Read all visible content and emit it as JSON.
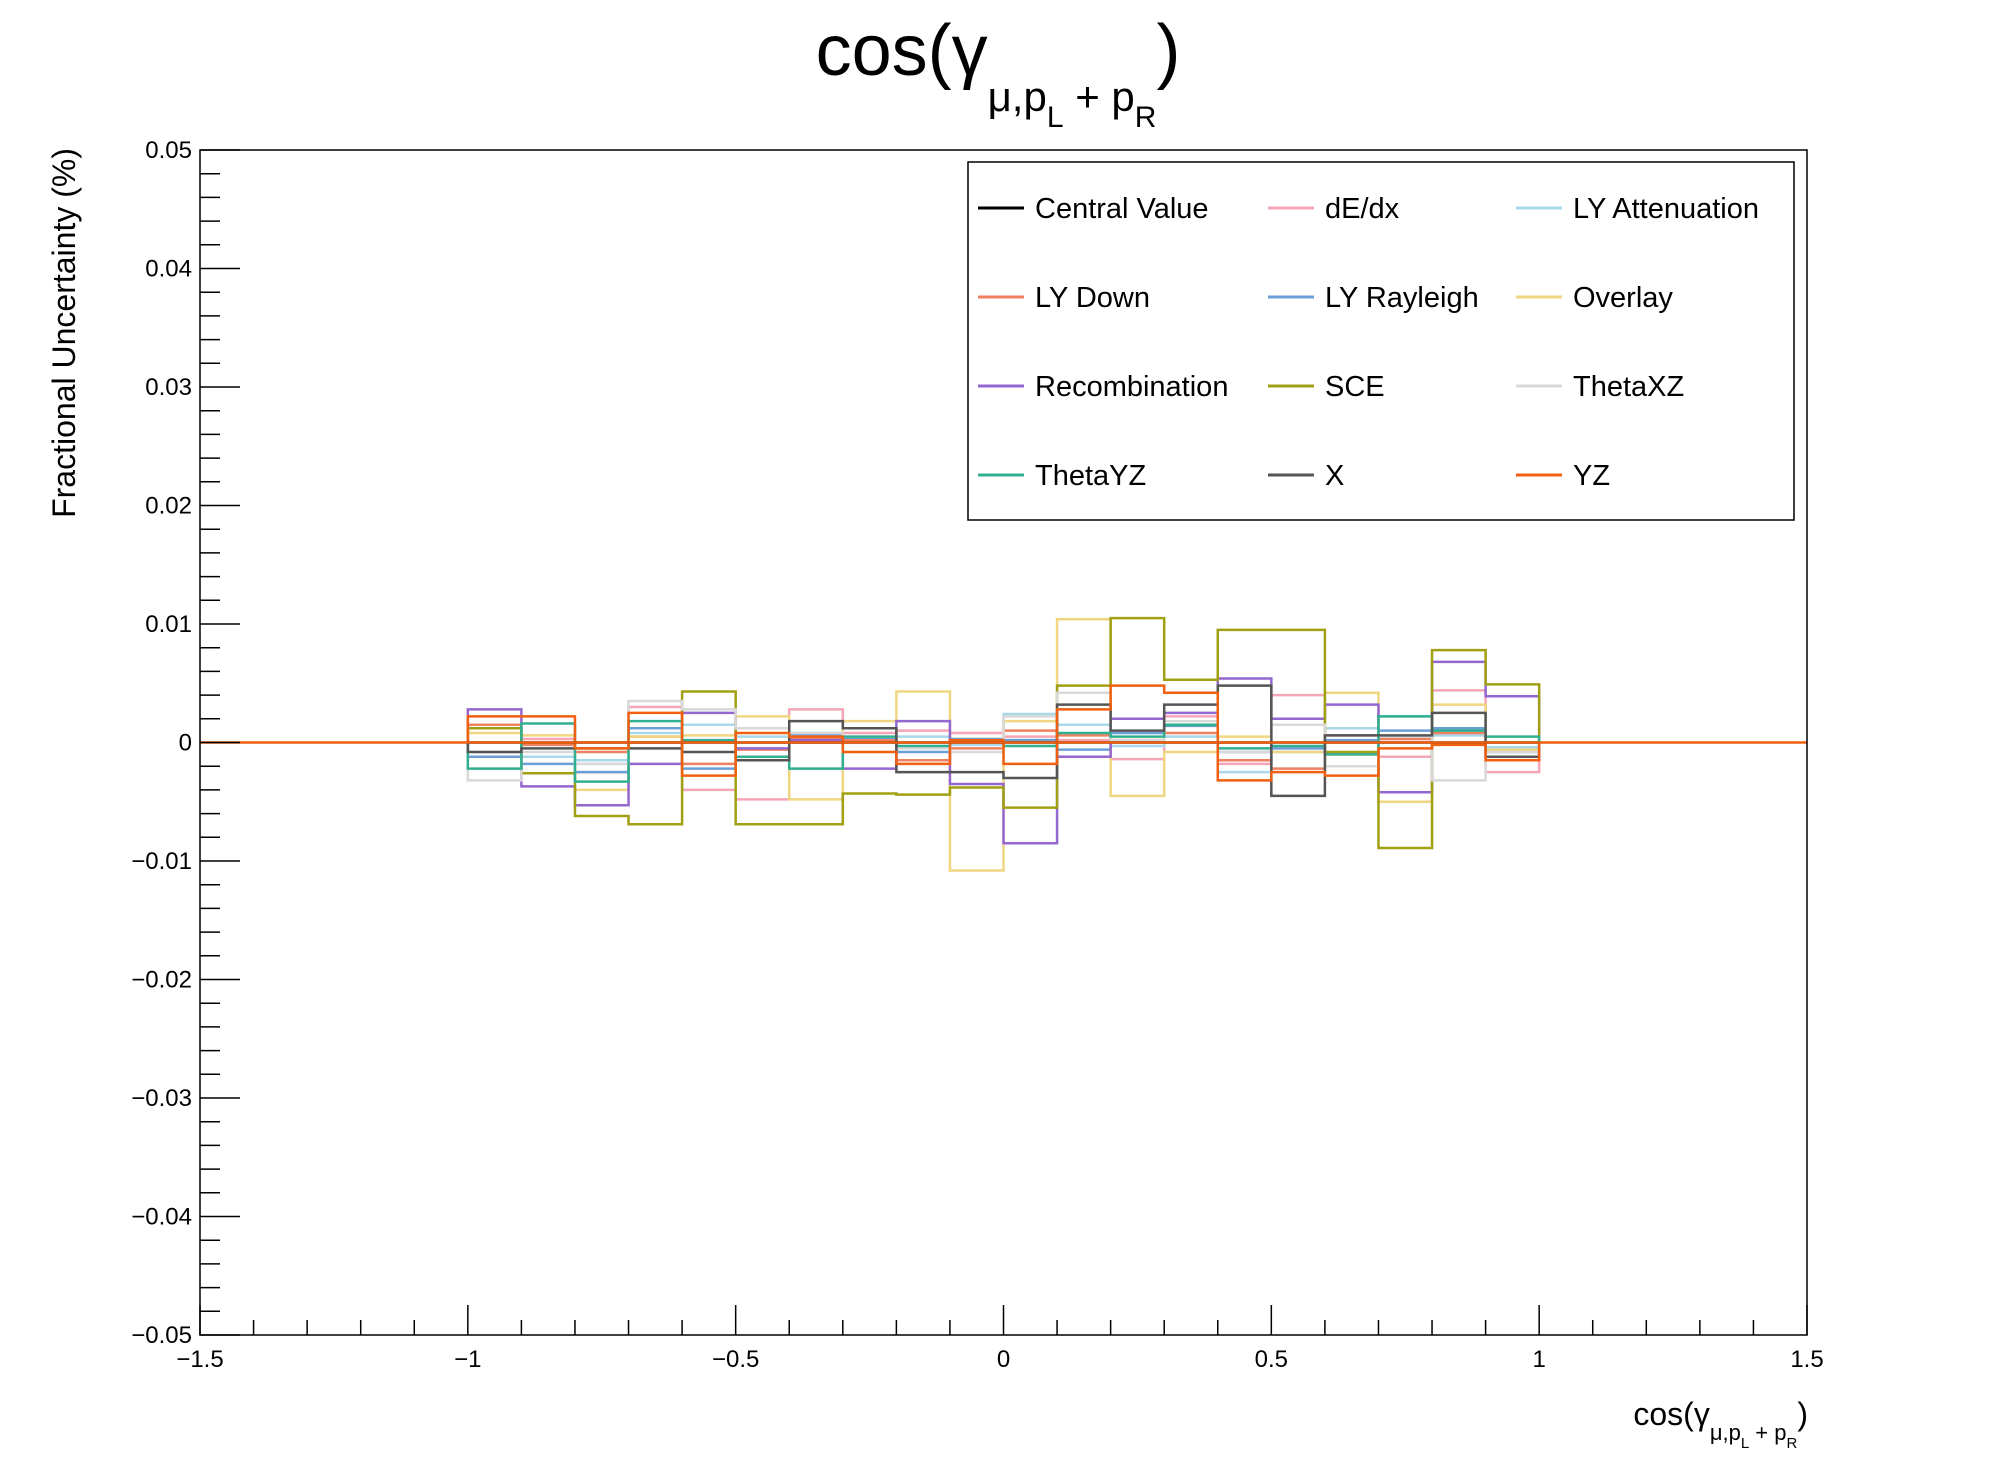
{
  "chart_data": {
    "type": "line",
    "title": {
      "main": "cos(γ",
      "sub1": "μ,p",
      "sub2": "L",
      "mid": " + p",
      "sub3": "R",
      "close": ")"
    },
    "xlabel": {
      "main": "cos(γ",
      "sub1": "μ,p",
      "sub2": "L",
      "mid": " + p",
      "sub3": "R",
      "close": ")"
    },
    "ylabel": "Fractional Uncertainty (%)",
    "xlim": [
      -1.5,
      1.5
    ],
    "ylim": [
      -0.05,
      0.05
    ],
    "x_ticks": [
      -1.5,
      -1,
      -0.5,
      0,
      0.5,
      1,
      1.5
    ],
    "x_tick_labels": [
      "−1.5",
      "−1",
      "−0.5",
      "0",
      "0.5",
      "1",
      "1.5"
    ],
    "y_ticks": [
      0.05,
      0.04,
      0.03,
      0.02,
      0.01,
      0,
      -0.01,
      -0.02,
      -0.03,
      -0.04,
      -0.05
    ],
    "y_tick_labels": [
      "0.05",
      "0.04",
      "0.03",
      "0.02",
      "0.01",
      "0",
      "−0.01",
      "−0.02",
      "−0.03",
      "−0.04",
      "−0.05"
    ],
    "bin_edges": [
      -1,
      -0.9,
      -0.8,
      -0.7,
      -0.6,
      -0.5,
      -0.4,
      -0.3,
      -0.2,
      -0.1,
      0,
      0.1,
      0.2,
      0.3,
      0.4,
      0.5,
      0.6,
      0.7,
      0.8,
      0.9,
      1
    ],
    "legend_position": "top-right",
    "grid": false,
    "series": [
      {
        "name": "Central Value",
        "color": "#000000",
        "values": [
          0,
          0,
          0,
          0,
          0,
          0,
          0,
          0,
          0,
          0,
          0,
          0,
          0,
          0,
          0,
          0,
          0,
          0,
          0,
          0
        ]
      },
      {
        "name": "dE/dx",
        "color": "#f4a6b7",
        "values": [
          0.0012,
          0.0003,
          -0.0025,
          0.003,
          -0.004,
          -0.0048,
          0.0028,
          0.0008,
          0.001,
          0.0008,
          0.0005,
          0.0002,
          -0.0014,
          0.0022,
          -0.0018,
          0.004,
          0.0006,
          -0.0012,
          0.0044,
          -0.0025
        ]
      },
      {
        "name": "LY Attenuation",
        "color": "#a8d8ea",
        "values": [
          -0.0008,
          -0.0012,
          -0.0015,
          0.0008,
          0.0015,
          0.0005,
          0.0008,
          0.0012,
          0.0005,
          -0.0002,
          0.0024,
          0.0015,
          -0.0003,
          0.0005,
          -0.0025,
          -0.0008,
          0.0012,
          0.0022,
          0.0006,
          -0.0004
        ]
      },
      {
        "name": "LY Down",
        "color": "#ef8060",
        "values": [
          0.0015,
          -0.0002,
          -0.0008,
          0.0005,
          -0.0018,
          -0.0006,
          0.0003,
          0.0002,
          -0.0015,
          -0.0005,
          0.001,
          0.0006,
          0.0002,
          0.0008,
          -0.0015,
          -0.0022,
          -0.001,
          0.0003,
          0.0008,
          -0.0015
        ]
      },
      {
        "name": "LY Rayleigh",
        "color": "#6a9fd8",
        "values": [
          -0.0012,
          -0.0018,
          -0.0025,
          0.0012,
          -0.0022,
          -0.0012,
          0.0006,
          0.0004,
          -0.0008,
          0.0003,
          0.0002,
          -0.0006,
          0.0008,
          0.0014,
          -0.0008,
          -0.0005,
          0.0002,
          0.001,
          0.0012,
          -0.0008
        ]
      },
      {
        "name": "Overlay",
        "color": "#f0d680",
        "values": [
          0.0008,
          0.0006,
          -0.004,
          0.0005,
          0.0006,
          0.0022,
          -0.0048,
          0.0018,
          0.0043,
          -0.0108,
          0.0018,
          0.0104,
          -0.0045,
          -0.0008,
          0.0005,
          -0.0008,
          0.0042,
          -0.005,
          0.0032,
          -0.0006
        ]
      },
      {
        "name": "Recombination",
        "color": "#9467d0",
        "values": [
          0.0028,
          -0.0037,
          -0.0053,
          -0.0018,
          0.0025,
          -0.0005,
          0.0002,
          -0.0022,
          0.0018,
          -0.0035,
          -0.0085,
          -0.0012,
          0.002,
          0.0025,
          0.0054,
          0.002,
          0.0032,
          -0.0042,
          0.0068,
          0.0039
        ]
      },
      {
        "name": "SCE",
        "color": "#a0a012",
        "values": [
          0.0012,
          -0.0026,
          -0.0062,
          -0.0069,
          0.0043,
          -0.0069,
          -0.0069,
          -0.0043,
          -0.0044,
          -0.0038,
          -0.0055,
          0.0048,
          0.0105,
          0.0053,
          0.0095,
          0.0095,
          -0.0008,
          -0.0089,
          0.0078,
          0.0049
        ]
      },
      {
        "name": "ThetaXZ",
        "color": "#d8d8d8",
        "values": [
          -0.0032,
          -0.0008,
          -0.0018,
          0.0035,
          0.0028,
          0.0012,
          0.0008,
          0.0005,
          -0.0005,
          -0.0008,
          0.0022,
          0.0042,
          0.0002,
          0.0018,
          -0.0008,
          0.0015,
          -0.002,
          0.0005,
          -0.0032,
          -0.0008
        ]
      },
      {
        "name": "ThetaYZ",
        "color": "#30b090",
        "values": [
          -0.0022,
          0.0016,
          -0.0033,
          0.0018,
          0.0002,
          -0.0012,
          -0.0022,
          0.0005,
          -0.0003,
          0.0002,
          -0.0003,
          0.0008,
          0.0005,
          0.0015,
          -0.0005,
          -0.0003,
          -0.001,
          0.0022,
          0.001,
          0.0005
        ]
      },
      {
        "name": "X",
        "color": "#555555",
        "values": [
          -0.0008,
          -0.0005,
          -0.0005,
          -0.0005,
          -0.0008,
          -0.0015,
          0.0018,
          0.0012,
          -0.0025,
          -0.0025,
          -0.003,
          0.0032,
          0.001,
          0.0032,
          0.0048,
          -0.0045,
          0.0006,
          0.0006,
          0.0025,
          -0.0012
        ]
      },
      {
        "name": "YZ",
        "color": "#f06010",
        "values": [
          0.0022,
          0.0022,
          -0.0005,
          0.0025,
          -0.0028,
          0.0008,
          0.0005,
          -0.0008,
          -0.0018,
          0.0002,
          -0.0018,
          0.0028,
          0.0048,
          0.0042,
          -0.0032,
          -0.0025,
          -0.0028,
          -0.0005,
          -0.0002,
          -0.0015
        ]
      }
    ]
  }
}
